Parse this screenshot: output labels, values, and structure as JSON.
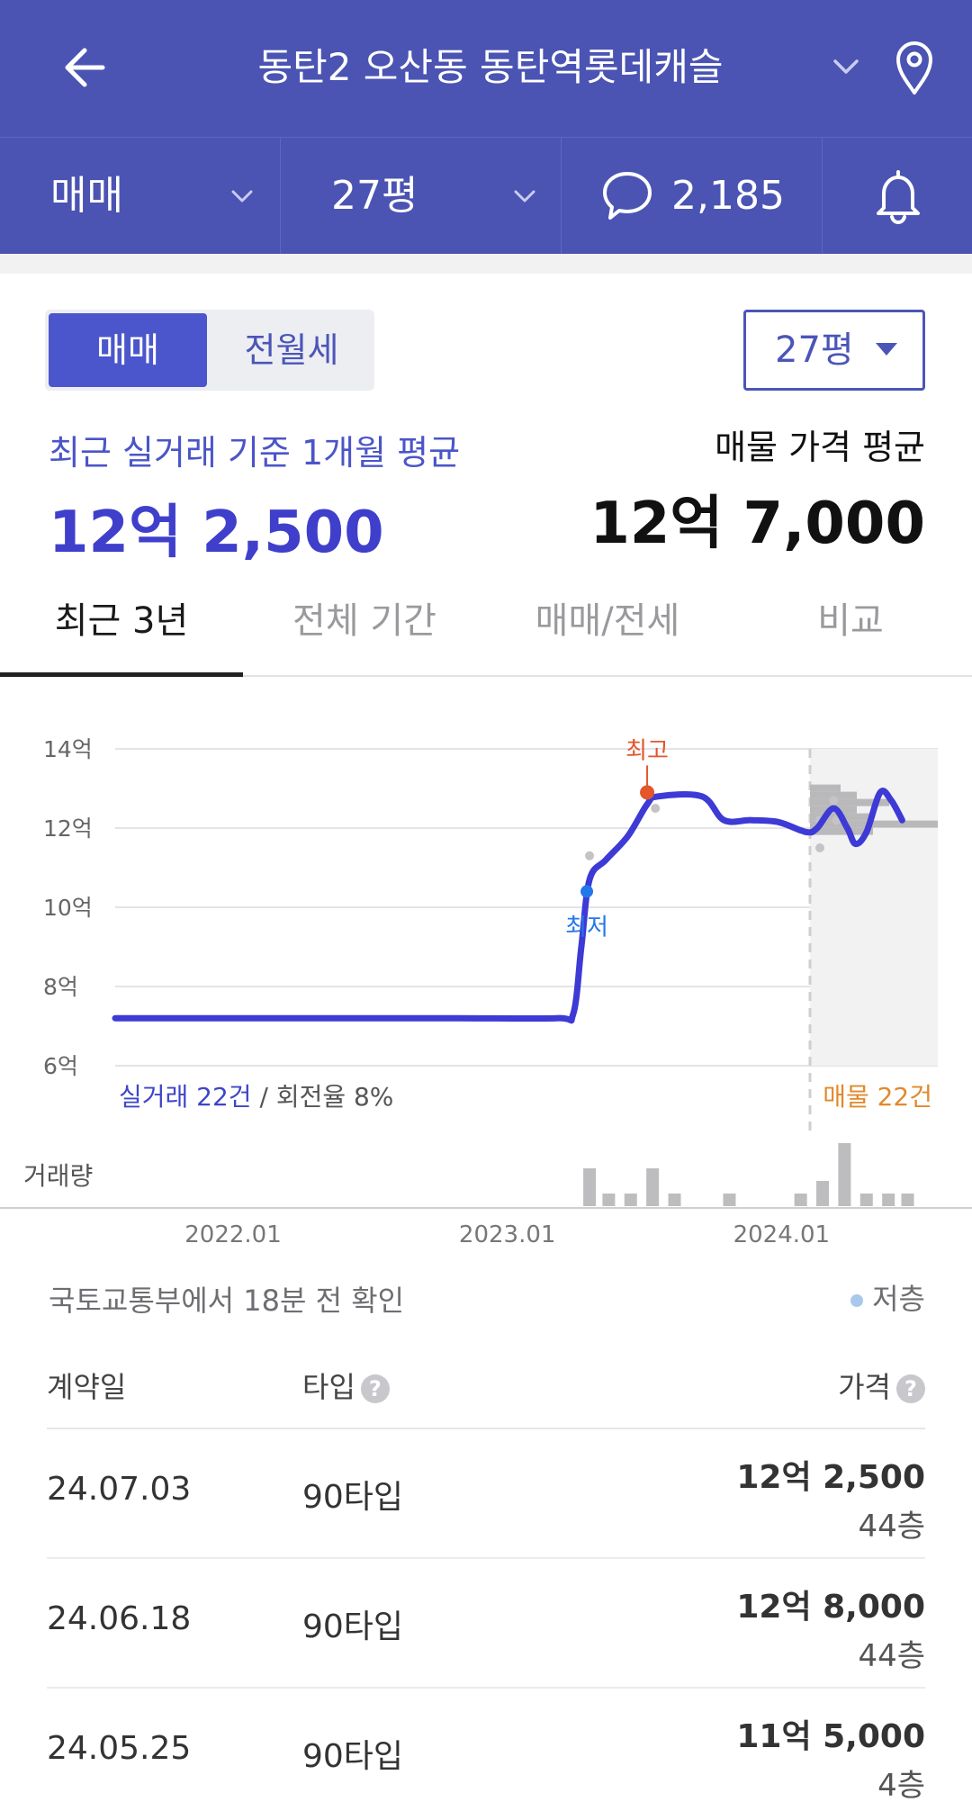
{
  "header": {
    "title": "동탄2 오산동 동탄역롯데캐슬",
    "back_icon": "arrow-left-icon",
    "dropdown_icon": "chevron-down-icon",
    "location_icon": "map-pin-icon"
  },
  "subbar": {
    "deal_type": "매매",
    "size": "27평",
    "comment_count": "2,185",
    "comment_icon": "speech-bubble-icon",
    "alert_icon": "bell-icon"
  },
  "toggle": {
    "sale": "매매",
    "rent": "전월세"
  },
  "size_select": "27평",
  "summary": {
    "recent_label": "최근 실거래 기준 1개월 평균",
    "recent_value": "12억 2,500",
    "listing_label": "매물 가격 평균",
    "listing_value": "12억 7,000"
  },
  "tabs": [
    "최근 3년",
    "전체 기간",
    "매매/전세",
    "비교"
  ],
  "chart_labels": {
    "high": "최고",
    "low": "최저",
    "trades": "실거래 22건",
    "turnover": " / 회전율 8%",
    "listings": "매물 22건",
    "volume": "거래량"
  },
  "chart_data": {
    "type": "line",
    "y_ticks": [
      "14억",
      "12억",
      "10억",
      "8억",
      "6억"
    ],
    "ylim": [
      6,
      14
    ],
    "x_ticks": [
      "2022.01",
      "2023.01",
      "2024.01"
    ],
    "xlim": [
      2021.58,
      2024.58
    ],
    "series": [
      {
        "points": [
          [
            2021.58,
            7.2
          ],
          [
            2022.2,
            7.2
          ],
          [
            2022.8,
            7.2
          ],
          [
            2023.19,
            7.2
          ],
          [
            2023.25,
            7.3
          ],
          [
            2023.28,
            9.0
          ],
          [
            2023.31,
            10.7
          ],
          [
            2023.37,
            11.2
          ],
          [
            2023.45,
            11.8
          ],
          [
            2023.52,
            12.6
          ],
          [
            2023.56,
            12.8
          ],
          [
            2023.72,
            12.8
          ],
          [
            2023.8,
            12.2
          ],
          [
            2023.9,
            12.2
          ],
          [
            2024.0,
            12.15
          ],
          [
            2024.1,
            11.9
          ],
          [
            2024.14,
            12.0
          ],
          [
            2024.2,
            12.5
          ],
          [
            2024.25,
            12.0
          ],
          [
            2024.28,
            11.6
          ],
          [
            2024.32,
            11.9
          ],
          [
            2024.37,
            12.9
          ],
          [
            2024.41,
            12.7
          ],
          [
            2024.45,
            12.2
          ]
        ]
      }
    ],
    "trade_points": [
      [
        2023.31,
        11.3
      ],
      [
        2023.3,
        10.4
      ],
      [
        2023.55,
        12.5
      ],
      [
        2024.15,
        11.5
      ],
      [
        2024.15,
        12.2
      ],
      [
        2024.2,
        12.7
      ],
      [
        2024.21,
        12.2
      ]
    ],
    "high_point": [
      2023.52,
      12.9
    ],
    "low_point": [
      2023.3,
      10.4
    ],
    "volume": [
      [
        2023.31,
        3
      ],
      [
        2023.38,
        1
      ],
      [
        2023.46,
        1
      ],
      [
        2023.54,
        3
      ],
      [
        2023.62,
        1
      ],
      [
        2023.82,
        1
      ],
      [
        2024.08,
        1
      ],
      [
        2024.16,
        2
      ],
      [
        2024.24,
        5
      ],
      [
        2024.32,
        1
      ],
      [
        2024.4,
        1
      ],
      [
        2024.47,
        1
      ]
    ],
    "listing_distribution": [
      [
        "13억",
        1
      ],
      [
        "12.9억",
        2
      ],
      [
        "12.8억",
        4
      ],
      [
        "12.7억",
        2
      ],
      [
        "12.6억",
        3
      ],
      [
        "12.5억",
        7
      ],
      [
        "12.4억",
        3
      ]
    ]
  },
  "source_text": "국토교통부에서 18분 전 확인",
  "legend_text": "저층",
  "table": {
    "headers": {
      "date": "계약일",
      "type": "타입",
      "price": "가격",
      "help_icon": "question-circle-icon"
    },
    "rows": [
      {
        "date": "24.07.03",
        "type": "90타입",
        "price": "12억 2,500",
        "floor": "44층"
      },
      {
        "date": "24.06.18",
        "type": "90타입",
        "price": "12억 8,000",
        "floor": "44층"
      },
      {
        "date": "24.05.25",
        "type": "90타입",
        "price": "11억 5,000",
        "floor": "4층"
      }
    ]
  },
  "colors": {
    "header_bg": "#4b54b3",
    "accent": "#4c56cc",
    "line": "#3d3ad6",
    "high": "#e4562b",
    "low": "#2377e8",
    "listing": "#e08a2c"
  }
}
